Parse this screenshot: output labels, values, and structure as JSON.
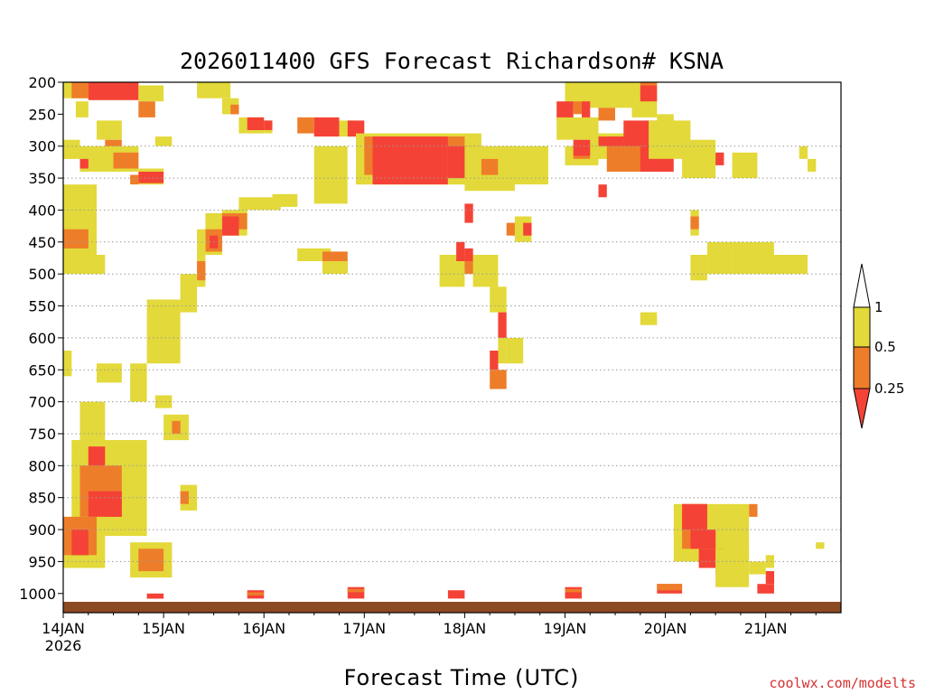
{
  "chart_data": {
    "type": "heatmap",
    "title": "2026011400 GFS Forecast Richardson# KSNA",
    "xlabel": "Forecast Time (UTC)",
    "ylabel": "",
    "credit": "coolwx.com/modelts",
    "x_ticks": [
      "14JAN",
      "15JAN",
      "16JAN",
      "17JAN",
      "18JAN",
      "19JAN",
      "20JAN",
      "21JAN"
    ],
    "x_start_label": "2026",
    "xlim_hours": [
      0,
      186
    ],
    "y_ticks": [
      200,
      250,
      300,
      350,
      400,
      450,
      500,
      550,
      600,
      650,
      700,
      750,
      800,
      850,
      900,
      950,
      1000
    ],
    "gridlines_at": [
      300,
      350,
      400,
      450,
      500,
      550,
      600,
      650,
      700,
      750,
      800,
      850,
      900,
      950
    ],
    "ylim_hpa": [
      200,
      1030
    ],
    "ground_level_hpa": 1013,
    "legend": {
      "levels": [
        "1",
        "0.5",
        "0.25"
      ],
      "bins": [
        {
          "name": "< 0.25",
          "color": "#f44336"
        },
        {
          "name": "0.25 - 0.5",
          "color": "#ee7d2a"
        },
        {
          "name": "0.5 - 1",
          "color": "#e3d93a"
        },
        {
          "name": "> 1",
          "color": "#ffffff"
        }
      ]
    },
    "colors": {
      "low": "#f44336",
      "mid": "#ee7d2a",
      "high": "#e3d93a",
      "ground": "#8c4a23",
      "grid": "#9a9a9a"
    },
    "regions": [
      {
        "cat": "high",
        "t0": 0,
        "t1": 18,
        "p0": 200,
        "p1": 225
      },
      {
        "cat": "mid",
        "t0": 2,
        "t1": 6,
        "p0": 200,
        "p1": 225
      },
      {
        "cat": "low",
        "t0": 6,
        "t1": 18,
        "p0": 200,
        "p1": 228
      },
      {
        "cat": "high",
        "t0": 18,
        "t1": 24,
        "p0": 205,
        "p1": 230
      },
      {
        "cat": "high",
        "t0": 3,
        "t1": 6,
        "p0": 230,
        "p1": 255
      },
      {
        "cat": "mid",
        "t0": 18,
        "t1": 22,
        "p0": 230,
        "p1": 255
      },
      {
        "cat": "high",
        "t0": 8,
        "t1": 14,
        "p0": 260,
        "p1": 290
      },
      {
        "cat": "high",
        "t0": 0,
        "t1": 4,
        "p0": 290,
        "p1": 320
      },
      {
        "cat": "mid",
        "t0": 10,
        "t1": 14,
        "p0": 290,
        "p1": 310
      },
      {
        "cat": "high",
        "t0": 4,
        "t1": 18,
        "p0": 300,
        "p1": 340
      },
      {
        "cat": "mid",
        "t0": 12,
        "t1": 18,
        "p0": 310,
        "p1": 335
      },
      {
        "cat": "low",
        "t0": 4,
        "t1": 6,
        "p0": 320,
        "p1": 335
      },
      {
        "cat": "high",
        "t0": 18,
        "t1": 24,
        "p0": 335,
        "p1": 360
      },
      {
        "cat": "low",
        "t0": 18,
        "t1": 24,
        "p0": 340,
        "p1": 358
      },
      {
        "cat": "mid",
        "t0": 16,
        "t1": 18,
        "p0": 345,
        "p1": 360
      },
      {
        "cat": "high",
        "t0": 0,
        "t1": 8,
        "p0": 360,
        "p1": 500
      },
      {
        "cat": "mid",
        "t0": 0,
        "t1": 6,
        "p0": 430,
        "p1": 460
      },
      {
        "cat": "high",
        "t0": 6,
        "t1": 10,
        "p0": 470,
        "p1": 500
      },
      {
        "cat": "high",
        "t0": 22,
        "t1": 26,
        "p0": 285,
        "p1": 300
      },
      {
        "cat": "high",
        "t0": 32,
        "t1": 40,
        "p0": 200,
        "p1": 225
      },
      {
        "cat": "high",
        "t0": 38,
        "t1": 42,
        "p0": 225,
        "p1": 250
      },
      {
        "cat": "mid",
        "t0": 40,
        "t1": 42,
        "p0": 235,
        "p1": 250
      },
      {
        "cat": "high",
        "t0": 42,
        "t1": 48,
        "p0": 255,
        "p1": 280
      },
      {
        "cat": "low",
        "t0": 44,
        "t1": 48,
        "p0": 255,
        "p1": 275
      },
      {
        "cat": "high",
        "t0": 48,
        "t1": 50,
        "p0": 260,
        "p1": 280
      },
      {
        "cat": "low",
        "t0": 48,
        "t1": 50,
        "p0": 260,
        "p1": 275
      },
      {
        "cat": "high",
        "t0": 50,
        "t1": 56,
        "p0": 375,
        "p1": 395
      },
      {
        "cat": "high",
        "t0": 42,
        "t1": 52,
        "p0": 380,
        "p1": 400
      },
      {
        "cat": "high",
        "t0": 38,
        "t1": 44,
        "p0": 400,
        "p1": 440
      },
      {
        "cat": "mid",
        "t0": 36,
        "t1": 44,
        "p0": 405,
        "p1": 430
      },
      {
        "cat": "low",
        "t0": 36,
        "t1": 42,
        "p0": 410,
        "p1": 440
      },
      {
        "cat": "high",
        "t0": 34,
        "t1": 38,
        "p0": 405,
        "p1": 470
      },
      {
        "cat": "mid",
        "t0": 34,
        "t1": 38,
        "p0": 430,
        "p1": 465
      },
      {
        "cat": "low",
        "t0": 35,
        "t1": 37,
        "p0": 440,
        "p1": 460
      },
      {
        "cat": "high",
        "t0": 32,
        "t1": 34,
        "p0": 430,
        "p1": 520
      },
      {
        "cat": "mid",
        "t0": 32,
        "t1": 34,
        "p0": 480,
        "p1": 510
      },
      {
        "cat": "high",
        "t0": 28,
        "t1": 32,
        "p0": 500,
        "p1": 560
      },
      {
        "cat": "mid",
        "t0": 24,
        "t1": 26,
        "p0": 540,
        "p1": 560
      },
      {
        "cat": "high",
        "t0": 20,
        "t1": 28,
        "p0": 540,
        "p1": 640
      },
      {
        "cat": "high",
        "t0": 16,
        "t1": 20,
        "p0": 640,
        "p1": 700
      },
      {
        "cat": "high",
        "t0": 22,
        "t1": 26,
        "p0": 690,
        "p1": 710
      },
      {
        "cat": "high",
        "t0": 24,
        "t1": 30,
        "p0": 720,
        "p1": 760
      },
      {
        "cat": "mid",
        "t0": 26,
        "t1": 28,
        "p0": 730,
        "p1": 750
      },
      {
        "cat": "high",
        "t0": 0,
        "t1": 2,
        "p0": 620,
        "p1": 660
      },
      {
        "cat": "high",
        "t0": 8,
        "t1": 14,
        "p0": 640,
        "p1": 670
      },
      {
        "cat": "high",
        "t0": 4,
        "t1": 10,
        "p0": 700,
        "p1": 760
      },
      {
        "cat": "high",
        "t0": 2,
        "t1": 20,
        "p0": 760,
        "p1": 910
      },
      {
        "cat": "mid",
        "t0": 4,
        "t1": 14,
        "p0": 800,
        "p1": 880
      },
      {
        "cat": "low",
        "t0": 6,
        "t1": 14,
        "p0": 840,
        "p1": 880
      },
      {
        "cat": "low",
        "t0": 6,
        "t1": 10,
        "p0": 770,
        "p1": 800
      },
      {
        "cat": "high",
        "t0": 0,
        "t1": 10,
        "p0": 880,
        "p1": 960
      },
      {
        "cat": "mid",
        "t0": 0,
        "t1": 8,
        "p0": 880,
        "p1": 940
      },
      {
        "cat": "low",
        "t0": 2,
        "t1": 6,
        "p0": 900,
        "p1": 940
      },
      {
        "cat": "high",
        "t0": 16,
        "t1": 26,
        "p0": 920,
        "p1": 975
      },
      {
        "cat": "mid",
        "t0": 18,
        "t1": 24,
        "p0": 930,
        "p1": 965
      },
      {
        "cat": "high",
        "t0": 28,
        "t1": 32,
        "p0": 830,
        "p1": 870
      },
      {
        "cat": "mid",
        "t0": 28,
        "t1": 30,
        "p0": 840,
        "p1": 860
      },
      {
        "cat": "high",
        "t0": 60,
        "t1": 68,
        "p0": 300,
        "p1": 390
      },
      {
        "cat": "mid",
        "t0": 56,
        "t1": 60,
        "p0": 255,
        "p1": 280
      },
      {
        "cat": "low",
        "t0": 60,
        "t1": 66,
        "p0": 255,
        "p1": 285
      },
      {
        "cat": "high",
        "t0": 56,
        "t1": 64,
        "p0": 460,
        "p1": 480
      },
      {
        "cat": "mid",
        "t0": 62,
        "t1": 68,
        "p0": 465,
        "p1": 495
      },
      {
        "cat": "high",
        "t0": 62,
        "t1": 68,
        "p0": 480,
        "p1": 500
      },
      {
        "cat": "high",
        "t0": 66,
        "t1": 70,
        "p0": 260,
        "p1": 285
      },
      {
        "cat": "low",
        "t0": 68,
        "t1": 72,
        "p0": 260,
        "p1": 285
      },
      {
        "cat": "high",
        "t0": 70,
        "t1": 100,
        "p0": 280,
        "p1": 360
      },
      {
        "cat": "mid",
        "t0": 72,
        "t1": 96,
        "p0": 285,
        "p1": 345
      },
      {
        "cat": "low",
        "t0": 74,
        "t1": 92,
        "p0": 285,
        "p1": 360
      },
      {
        "cat": "low",
        "t0": 92,
        "t1": 100,
        "p0": 300,
        "p1": 350
      },
      {
        "cat": "high",
        "t0": 96,
        "t1": 108,
        "p0": 300,
        "p1": 370
      },
      {
        "cat": "mid",
        "t0": 100,
        "t1": 104,
        "p0": 320,
        "p1": 345
      },
      {
        "cat": "high",
        "t0": 104,
        "t1": 116,
        "p0": 300,
        "p1": 360
      },
      {
        "cat": "high",
        "t0": 120,
        "t1": 130,
        "p0": 200,
        "p1": 240
      },
      {
        "cat": "low",
        "t0": 118,
        "t1": 122,
        "p0": 230,
        "p1": 260
      },
      {
        "cat": "mid",
        "t0": 122,
        "t1": 124,
        "p0": 230,
        "p1": 250
      },
      {
        "cat": "low",
        "t0": 124,
        "t1": 126,
        "p0": 230,
        "p1": 260
      },
      {
        "cat": "high",
        "t0": 118,
        "t1": 128,
        "p0": 255,
        "p1": 290
      },
      {
        "cat": "high",
        "t0": 128,
        "t1": 140,
        "p0": 200,
        "p1": 240
      },
      {
        "cat": "mid",
        "t0": 128,
        "t1": 132,
        "p0": 240,
        "p1": 260
      },
      {
        "cat": "high",
        "t0": 120,
        "t1": 128,
        "p0": 300,
        "p1": 330
      },
      {
        "cat": "mid",
        "t0": 122,
        "t1": 126,
        "p0": 300,
        "p1": 320
      },
      {
        "cat": "low",
        "t0": 122,
        "t1": 128,
        "p0": 290,
        "p1": 315
      },
      {
        "cat": "high",
        "t0": 126,
        "t1": 146,
        "p0": 280,
        "p1": 320
      },
      {
        "cat": "mid",
        "t0": 130,
        "t1": 144,
        "p0": 285,
        "p1": 340
      },
      {
        "cat": "low",
        "t0": 128,
        "t1": 134,
        "p0": 285,
        "p1": 300
      },
      {
        "cat": "low",
        "t0": 134,
        "t1": 146,
        "p0": 260,
        "p1": 300
      },
      {
        "cat": "low",
        "t0": 138,
        "t1": 146,
        "p0": 300,
        "p1": 340
      },
      {
        "cat": "high",
        "t0": 136,
        "t1": 142,
        "p0": 200,
        "p1": 255
      },
      {
        "cat": "low",
        "t0": 138,
        "t1": 142,
        "p0": 205,
        "p1": 230
      },
      {
        "cat": "mid",
        "t0": 138,
        "t1": 142,
        "p0": 200,
        "p1": 205
      },
      {
        "cat": "high",
        "t0": 140,
        "t1": 150,
        "p0": 260,
        "p1": 320
      },
      {
        "cat": "high",
        "t0": 150,
        "t1": 152,
        "p0": 300,
        "p1": 320
      },
      {
        "cat": "low",
        "t0": 128,
        "t1": 130,
        "p0": 360,
        "p1": 380
      },
      {
        "cat": "high",
        "t0": 142,
        "t1": 146,
        "p0": 250,
        "p1": 270
      },
      {
        "cat": "high",
        "t0": 148,
        "t1": 156,
        "p0": 290,
        "p1": 350
      },
      {
        "cat": "low",
        "t0": 156,
        "t1": 158,
        "p0": 310,
        "p1": 330
      },
      {
        "cat": "high",
        "t0": 160,
        "t1": 166,
        "p0": 310,
        "p1": 350
      },
      {
        "cat": "high",
        "t0": 176,
        "t1": 178,
        "p0": 300,
        "p1": 320
      },
      {
        "cat": "high",
        "t0": 178,
        "t1": 180,
        "p0": 320,
        "p1": 340
      },
      {
        "cat": "high",
        "t0": 90,
        "t1": 96,
        "p0": 470,
        "p1": 520
      },
      {
        "cat": "low",
        "t0": 94,
        "t1": 96,
        "p0": 450,
        "p1": 480
      },
      {
        "cat": "low",
        "t0": 96,
        "t1": 98,
        "p0": 460,
        "p1": 490
      },
      {
        "cat": "mid",
        "t0": 96,
        "t1": 98,
        "p0": 480,
        "p1": 500
      },
      {
        "cat": "low",
        "t0": 96,
        "t1": 98,
        "p0": 390,
        "p1": 420
      },
      {
        "cat": "low",
        "t0": 98,
        "t1": 100,
        "p0": 470,
        "p1": 500
      },
      {
        "cat": "high",
        "t0": 98,
        "t1": 104,
        "p0": 470,
        "p1": 520
      },
      {
        "cat": "high",
        "t0": 102,
        "t1": 106,
        "p0": 520,
        "p1": 560
      },
      {
        "cat": "low",
        "t0": 104,
        "t1": 106,
        "p0": 560,
        "p1": 600
      },
      {
        "cat": "high",
        "t0": 104,
        "t1": 106,
        "p0": 600,
        "p1": 640
      },
      {
        "cat": "low",
        "t0": 102,
        "t1": 104,
        "p0": 620,
        "p1": 650
      },
      {
        "cat": "mid",
        "t0": 102,
        "t1": 106,
        "p0": 650,
        "p1": 680
      },
      {
        "cat": "high",
        "t0": 106,
        "t1": 110,
        "p0": 600,
        "p1": 640
      },
      {
        "cat": "mid",
        "t0": 106,
        "t1": 110,
        "p0": 420,
        "p1": 440
      },
      {
        "cat": "high",
        "t0": 108,
        "t1": 112,
        "p0": 410,
        "p1": 450
      },
      {
        "cat": "low",
        "t0": 110,
        "t1": 112,
        "p0": 420,
        "p1": 440
      },
      {
        "cat": "high",
        "t0": 138,
        "t1": 142,
        "p0": 560,
        "p1": 580
      },
      {
        "cat": "high",
        "t0": 150,
        "t1": 152,
        "p0": 400,
        "p1": 440
      },
      {
        "cat": "mid",
        "t0": 150,
        "t1": 152,
        "p0": 410,
        "p1": 430
      },
      {
        "cat": "high",
        "t0": 154,
        "t1": 160,
        "p0": 450,
        "p1": 500
      },
      {
        "cat": "high",
        "t0": 160,
        "t1": 170,
        "p0": 450,
        "p1": 500
      },
      {
        "cat": "high",
        "t0": 168,
        "t1": 178,
        "p0": 470,
        "p1": 500
      },
      {
        "cat": "high",
        "t0": 150,
        "t1": 154,
        "p0": 470,
        "p1": 510
      },
      {
        "cat": "high",
        "t0": 146,
        "t1": 164,
        "p0": 860,
        "p1": 950
      },
      {
        "cat": "mid",
        "t0": 148,
        "t1": 154,
        "p0": 860,
        "p1": 930
      },
      {
        "cat": "low",
        "t0": 148,
        "t1": 154,
        "p0": 860,
        "p1": 900
      },
      {
        "cat": "low",
        "t0": 150,
        "t1": 156,
        "p0": 900,
        "p1": 930
      },
      {
        "cat": "low",
        "t0": 152,
        "t1": 158,
        "p0": 930,
        "p1": 960
      },
      {
        "cat": "mid",
        "t0": 156,
        "t1": 160,
        "p0": 940,
        "p1": 970
      },
      {
        "cat": "high",
        "t0": 156,
        "t1": 164,
        "p0": 930,
        "p1": 990
      },
      {
        "cat": "mid",
        "t0": 164,
        "t1": 166,
        "p0": 860,
        "p1": 880
      },
      {
        "cat": "high",
        "t0": 168,
        "t1": 170,
        "p0": 940,
        "p1": 960
      },
      {
        "cat": "low",
        "t0": 168,
        "t1": 170,
        "p0": 965,
        "p1": 985
      },
      {
        "cat": "high",
        "t0": 164,
        "t1": 168,
        "p0": 950,
        "p1": 970
      },
      {
        "cat": "high",
        "t0": 180,
        "t1": 182,
        "p0": 920,
        "p1": 930
      },
      {
        "cat": "low",
        "t0": 142,
        "t1": 148,
        "p0": 985,
        "p1": 1000
      },
      {
        "cat": "mid",
        "t0": 142,
        "t1": 148,
        "p0": 985,
        "p1": 995
      },
      {
        "cat": "low",
        "t0": 166,
        "t1": 170,
        "p0": 985,
        "p1": 1000
      },
      {
        "cat": "low",
        "t0": 20,
        "t1": 24,
        "p0": 1000,
        "p1": 1008
      },
      {
        "cat": "low",
        "t0": 44,
        "t1": 48,
        "p0": 995,
        "p1": 1008
      },
      {
        "cat": "mid",
        "t0": 44,
        "t1": 48,
        "p0": 998,
        "p1": 1003
      },
      {
        "cat": "low",
        "t0": 68,
        "t1": 72,
        "p0": 990,
        "p1": 1008
      },
      {
        "cat": "mid",
        "t0": 68,
        "t1": 72,
        "p0": 993,
        "p1": 998
      },
      {
        "cat": "low",
        "t0": 92,
        "t1": 96,
        "p0": 995,
        "p1": 1008
      },
      {
        "cat": "low",
        "t0": 120,
        "t1": 124,
        "p0": 990,
        "p1": 1008
      },
      {
        "cat": "mid",
        "t0": 120,
        "t1": 124,
        "p0": 993,
        "p1": 998
      }
    ]
  }
}
